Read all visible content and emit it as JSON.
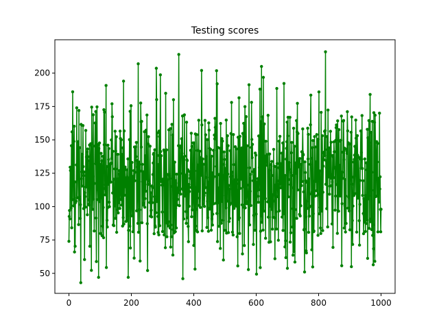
{
  "chart_data": {
    "type": "line",
    "title": "Testing scores",
    "xlabel": "",
    "ylabel": "",
    "xlim": [
      -45,
      1045
    ],
    "ylim": [
      35,
      225
    ],
    "xticks": [
      0,
      200,
      400,
      600,
      800,
      1000
    ],
    "yticks": [
      50,
      75,
      100,
      125,
      150,
      175,
      200
    ],
    "grid": false,
    "legend": "none",
    "color": "#008000",
    "marker": "point",
    "n_points": 1001,
    "stats": {
      "y_center": 120,
      "y_spread": 28,
      "y_min": 43,
      "y_max": 216
    },
    "notable_points": [
      {
        "x": 0,
        "y": 74
      },
      {
        "x": 5,
        "y": 127
      },
      {
        "x": 10,
        "y": 156
      },
      {
        "x": 12,
        "y": 186
      },
      {
        "x": 18,
        "y": 66
      },
      {
        "x": 25,
        "y": 174
      },
      {
        "x": 32,
        "y": 172
      },
      {
        "x": 38,
        "y": 43
      },
      {
        "x": 95,
        "y": 47
      },
      {
        "x": 175,
        "y": 194
      },
      {
        "x": 190,
        "y": 47
      },
      {
        "x": 222,
        "y": 207
      },
      {
        "x": 352,
        "y": 214
      },
      {
        "x": 365,
        "y": 46
      },
      {
        "x": 425,
        "y": 202
      },
      {
        "x": 475,
        "y": 192
      },
      {
        "x": 495,
        "y": 60
      },
      {
        "x": 612,
        "y": 188
      },
      {
        "x": 617,
        "y": 205
      },
      {
        "x": 755,
        "y": 51
      },
      {
        "x": 822,
        "y": 216
      },
      {
        "x": 905,
        "y": 55
      },
      {
        "x": 965,
        "y": 184
      },
      {
        "x": 980,
        "y": 59
      },
      {
        "x": 995,
        "y": 170
      },
      {
        "x": 1000,
        "y": 98
      }
    ]
  }
}
